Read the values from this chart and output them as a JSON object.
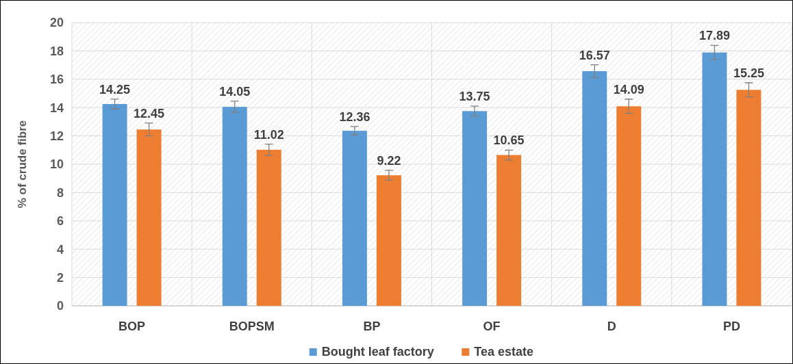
{
  "chart_data": {
    "type": "bar",
    "ylabel": "% of crude fibre",
    "categories": [
      "BOP",
      "BOPSM",
      "BP",
      "OF",
      "D",
      "PD"
    ],
    "series": [
      {
        "name": "Bought leaf factory",
        "color": "#5b9bd5",
        "values": [
          14.25,
          14.05,
          12.36,
          13.75,
          16.57,
          17.89
        ],
        "errors": [
          0.35,
          0.4,
          0.3,
          0.35,
          0.45,
          0.5
        ]
      },
      {
        "name": "Tea estate",
        "color": "#ed7d31",
        "values": [
          12.45,
          11.02,
          9.22,
          10.65,
          14.09,
          15.25
        ],
        "errors": [
          0.45,
          0.4,
          0.35,
          0.35,
          0.5,
          0.5
        ]
      }
    ],
    "ylim": [
      0,
      20
    ],
    "yticks": [
      0,
      2,
      4,
      6,
      8,
      10,
      12,
      14,
      16,
      18,
      20
    ],
    "grid": true,
    "legend": "bottom",
    "data_labels": true
  }
}
